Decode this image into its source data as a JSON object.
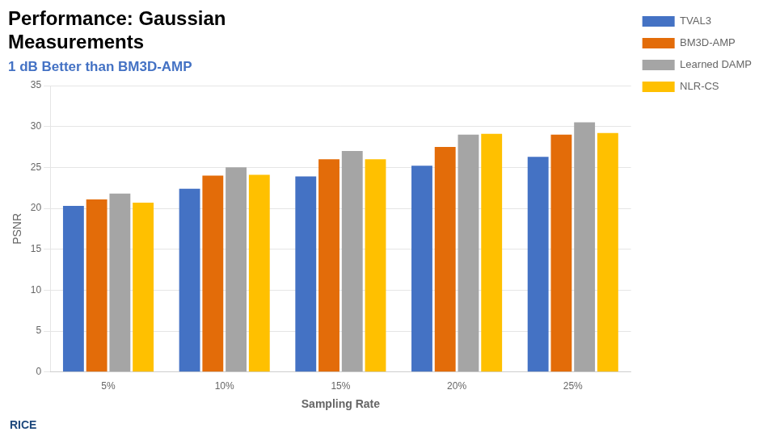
{
  "chart_data": {
    "type": "bar",
    "title": [
      "Performance: Gaussian",
      "Measurements"
    ],
    "subtitle": "1 dB Better than BM3D-AMP",
    "annotations": [
      "RICE"
    ],
    "x_label": "Sampling Rate",
    "y_label": "PSNR",
    "categories": [
      "5%",
      "10%",
      "15%",
      "20%",
      "25%"
    ],
    "series": [
      {
        "name": "TVAL3",
        "color": "#4472C4",
        "values": [
          20.3,
          22.4,
          23.9,
          25.2,
          26.3
        ]
      },
      {
        "name": "BM3D-AMP",
        "color": "#E36C09",
        "values": [
          21.1,
          24.0,
          26.0,
          27.5,
          29.0
        ]
      },
      {
        "name": "Learned DAMP",
        "color": "#A5A5A5",
        "values": [
          21.8,
          25.0,
          27.0,
          29.0,
          30.5
        ]
      },
      {
        "name": "NLR-CS",
        "color": "#FFC000",
        "values": [
          20.7,
          24.1,
          26.0,
          29.1,
          29.2
        ]
      }
    ],
    "ylim": [
      0,
      35
    ],
    "yticks": [
      0,
      5,
      10,
      15,
      20,
      25,
      30,
      35
    ],
    "grid": true,
    "legend": "right"
  }
}
